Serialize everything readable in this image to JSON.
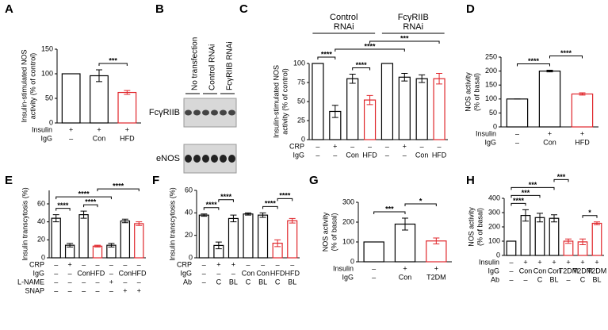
{
  "chart_data": [
    {
      "type": "bar",
      "panel": "A",
      "ylabel": [
        "Insulin-stimulated NOS",
        "activity (% of control)"
      ],
      "values": [
        100,
        96,
        62
      ],
      "errors": [
        0,
        12,
        4
      ],
      "colors": [
        "#000000",
        "#000000",
        "#e0262b"
      ],
      "ylim": [
        0,
        150
      ],
      "yticks": [
        0,
        50,
        100,
        150
      ],
      "conditions": [
        {
          "label": "Insulin",
          "values": [
            "+",
            "+",
            "+"
          ]
        },
        {
          "label": "IgG",
          "values": [
            "–",
            "Con",
            "HFD"
          ]
        }
      ],
      "significance": [
        {
          "label": "***",
          "between": [
            1,
            2
          ]
        }
      ]
    },
    {
      "type": "bar",
      "panel": "C",
      "ylabel": [
        "Insulin-stimulated NOS",
        "activity (% of control)"
      ],
      "values": [
        100,
        37,
        80,
        52,
        100,
        82,
        80,
        80
      ],
      "errors": [
        0,
        8,
        6,
        6,
        0,
        5,
        5,
        7
      ],
      "colors": [
        "#000000",
        "#000000",
        "#000000",
        "#e0262b",
        "#000000",
        "#000000",
        "#000000",
        "#e0262b"
      ],
      "ylim": [
        0,
        100
      ],
      "yticks": [
        0,
        25,
        50,
        75,
        100
      ],
      "groups": [
        {
          "label": [
            "Control",
            "RNAi"
          ],
          "span": [
            0,
            3
          ]
        },
        {
          "label": [
            "FcγRIIB",
            "RNAi"
          ],
          "span": [
            4,
            7
          ]
        }
      ],
      "conditions": [
        {
          "label": "CRP",
          "values": [
            "–",
            "+",
            "–",
            "–",
            "–",
            "+",
            "–",
            "–"
          ]
        },
        {
          "label": "IgG",
          "values": [
            "–",
            "–",
            "Con",
            "HFD",
            "–",
            "–",
            "Con",
            "HFD"
          ]
        }
      ],
      "significance": [
        {
          "label": "****",
          "between": [
            0,
            1
          ]
        },
        {
          "label": "****",
          "between": [
            2,
            3
          ]
        },
        {
          "label": "****",
          "between": [
            1,
            5
          ]
        },
        {
          "label": "***",
          "between": [
            3,
            7
          ]
        }
      ]
    },
    {
      "type": "bar",
      "panel": "D",
      "ylabel": [
        "NOS activity",
        "(% of basal)"
      ],
      "values": [
        100,
        200,
        118
      ],
      "errors": [
        0,
        3,
        4
      ],
      "colors": [
        "#000000",
        "#000000",
        "#e0262b"
      ],
      "ylim": [
        0,
        250
      ],
      "yticks": [
        0,
        50,
        100,
        150,
        200,
        250
      ],
      "conditions": [
        {
          "label": "Insulin",
          "values": [
            "–",
            "+",
            "+"
          ]
        },
        {
          "label": "IgG",
          "values": [
            "–",
            "Con",
            "HFD"
          ]
        }
      ],
      "significance": [
        {
          "label": "****",
          "between": [
            0,
            1
          ]
        },
        {
          "label": "****",
          "between": [
            1,
            2
          ]
        }
      ]
    },
    {
      "type": "bar",
      "panel": "E",
      "ylabel": [
        "Insulin transcytosis (%)"
      ],
      "values": [
        44,
        14,
        48,
        13,
        14,
        41,
        38
      ],
      "errors": [
        4,
        2,
        4,
        1,
        2,
        2,
        2
      ],
      "colors": [
        "#000000",
        "#000000",
        "#000000",
        "#e0262b",
        "#000000",
        "#000000",
        "#e0262b"
      ],
      "ylim": [
        0,
        75
      ],
      "yticks": [
        0,
        20,
        40,
        60
      ],
      "conditions": [
        {
          "label": "CRP",
          "values": [
            "–",
            "+",
            "–",
            "–",
            "–",
            "–",
            "–"
          ]
        },
        {
          "label": "IgG",
          "values": [
            "–",
            "–",
            "Con",
            "HFD",
            "–",
            "Con",
            "HFD"
          ]
        },
        {
          "label": "L-NAME",
          "values": [
            "–",
            "–",
            "–",
            "–",
            "+",
            "–",
            "–"
          ]
        },
        {
          "label": "SNAP",
          "values": [
            "–",
            "–",
            "–",
            "–",
            "–",
            "+",
            "+"
          ]
        }
      ],
      "significance": [
        {
          "label": "****",
          "between": [
            0,
            1
          ]
        },
        {
          "label": "****",
          "between": [
            2,
            3
          ]
        },
        {
          "label": "****",
          "between": [
            0,
            4
          ]
        },
        {
          "label": "****",
          "between": [
            3,
            6
          ]
        }
      ]
    },
    {
      "type": "bar",
      "panel": "F",
      "ylabel": [
        "Insulin transcytosis (%)"
      ],
      "values": [
        38,
        11,
        35,
        39,
        38,
        13,
        33
      ],
      "errors": [
        1,
        3,
        3,
        1,
        2,
        3,
        2
      ],
      "colors": [
        "#000000",
        "#000000",
        "#000000",
        "#000000",
        "#000000",
        "#e0262b",
        "#e0262b"
      ],
      "ylim": [
        0,
        60
      ],
      "yticks": [
        0,
        20,
        40,
        60
      ],
      "conditions": [
        {
          "label": "CRP",
          "values": [
            "–",
            "+",
            "+",
            "–",
            "–",
            "–",
            "–"
          ]
        },
        {
          "label": "IgG",
          "values": [
            "–",
            "–",
            "–",
            "Con",
            "Con",
            "HFD",
            "HFD"
          ]
        },
        {
          "label": "Ab",
          "values": [
            "–",
            "C",
            "BL",
            "C",
            "BL",
            "C",
            "BL"
          ]
        }
      ],
      "significance": [
        {
          "label": "****",
          "between": [
            0,
            1
          ]
        },
        {
          "label": "****",
          "between": [
            1,
            2
          ]
        },
        {
          "label": "****",
          "between": [
            4,
            5
          ]
        },
        {
          "label": "****",
          "between": [
            5,
            6
          ]
        }
      ]
    },
    {
      "type": "bar",
      "panel": "G",
      "ylabel": [
        "NOS activity",
        "(% of basal)"
      ],
      "values": [
        100,
        190,
        105
      ],
      "errors": [
        0,
        30,
        15
      ],
      "colors": [
        "#000000",
        "#000000",
        "#e0262b"
      ],
      "ylim": [
        0,
        300
      ],
      "yticks": [
        0,
        100,
        200,
        300
      ],
      "conditions": [
        {
          "label": "Insulin",
          "values": [
            "–",
            "+",
            "+"
          ]
        },
        {
          "label": "IgG",
          "values": [
            "–",
            "Con",
            "T2DM"
          ]
        }
      ],
      "significance": [
        {
          "label": "***",
          "between": [
            0,
            1
          ]
        },
        {
          "label": "*",
          "between": [
            1,
            2
          ]
        }
      ]
    },
    {
      "type": "bar",
      "panel": "H",
      "ylabel": [
        "NOS activity",
        "(% of basal)"
      ],
      "values": [
        100,
        280,
        265,
        260,
        100,
        95,
        225
      ],
      "errors": [
        0,
        40,
        30,
        25,
        15,
        20,
        10
      ],
      "colors": [
        "#000000",
        "#000000",
        "#000000",
        "#000000",
        "#e0262b",
        "#e0262b",
        "#e0262b"
      ],
      "ylim": [
        0,
        400
      ],
      "yticks": [
        0,
        100,
        200,
        300,
        400
      ],
      "conditions": [
        {
          "label": "Insulin",
          "values": [
            "–",
            "+",
            "+",
            "+",
            "+",
            "+",
            "+"
          ]
        },
        {
          "label": "IgG",
          "values": [
            "–",
            "Con",
            "Con",
            "Con",
            "T2DM",
            "T2DM",
            "T2DM"
          ]
        },
        {
          "label": "Ab",
          "values": [
            "–",
            "–",
            "C",
            "BL",
            "–",
            "C",
            "BL"
          ]
        }
      ],
      "significance": [
        {
          "label": "****",
          "between": [
            0,
            1
          ]
        },
        {
          "label": "***",
          "between": [
            0,
            2
          ]
        },
        {
          "label": "***",
          "between": [
            0,
            3
          ]
        },
        {
          "label": "***",
          "between": [
            3,
            4
          ]
        },
        {
          "label": "*",
          "between": [
            5,
            6
          ]
        }
      ]
    }
  ],
  "blot": {
    "panel": "B",
    "lanes": [
      "No transfection",
      "Control RNAi",
      "FcγRIIB RNAi"
    ],
    "rows": [
      "FcγRIIB",
      "eNOS"
    ]
  }
}
